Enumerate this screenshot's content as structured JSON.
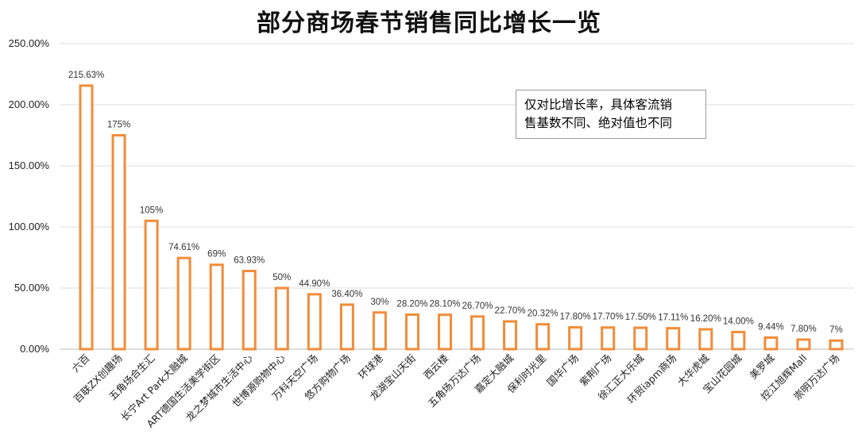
{
  "chart_data": {
    "type": "bar",
    "title": "部分商场春节销售同比增长一览",
    "xlabel": "",
    "ylabel": "",
    "ylim": [
      0,
      250
    ],
    "yticks": [
      "0.00%",
      "50.00%",
      "100.00%",
      "150.00%",
      "200.00%",
      "250.00%"
    ],
    "ytick_values": [
      0,
      50,
      100,
      150,
      200,
      250
    ],
    "grid": true,
    "bar_style": "outline",
    "bar_color": "#F28C38",
    "categories": [
      "六百",
      "百联ZX创趣场",
      "五角场合生汇",
      "长宁Art Park大融城",
      "ART德国生活美学街区",
      "龙之梦城市生活中心",
      "世博源购物中心",
      "万科天空广场",
      "悠方购物广场",
      "环球港",
      "龙湖宝山天街",
      "西云楼",
      "五角场万达广场",
      "嘉定大融城",
      "保利时光里",
      "国华广场",
      "紫荆广场",
      "徐汇正大乐城",
      "环贸iapm商场",
      "大华虎城",
      "宝山花园城",
      "美罗城",
      "控江旭辉Mall",
      "崇明万达广场"
    ],
    "values": [
      215.63,
      175,
      105,
      74.61,
      69,
      63.93,
      50,
      44.9,
      36.4,
      30,
      28.2,
      28.1,
      26.7,
      22.7,
      20.32,
      17.8,
      17.7,
      17.5,
      17.11,
      16.2,
      14.0,
      9.44,
      7.8,
      7
    ],
    "data_labels": [
      "215.63%",
      "175%",
      "105%",
      "74.61%",
      "69%",
      "63.93%",
      "50%",
      "44.90%",
      "36.40%",
      "30%",
      "28.20%",
      "28.10%",
      "26.70%",
      "22.70%",
      "20.32%",
      "17.80%",
      "17.70%",
      "17.50%",
      "17.11%",
      "16.20%",
      "14.00%",
      "9.44%",
      "7.80%",
      "7%"
    ]
  },
  "annotation": {
    "line1": "仅对比增长率，具体客流销",
    "line2": "售基数不同、绝对值也不同"
  }
}
